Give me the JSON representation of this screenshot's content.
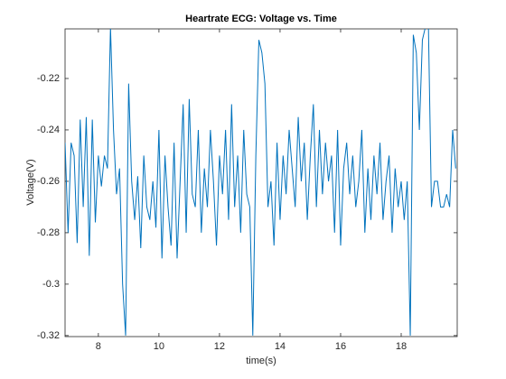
{
  "chart_data": {
    "type": "line",
    "title": "Heartrate ECG: Voltage vs. Time",
    "xlabel": "time(s)",
    "ylabel": "Voltage(V)",
    "xlim": [
      6.9,
      19.85
    ],
    "ylim": [
      -0.3204,
      -0.2007
    ],
    "xticks": [
      8,
      10,
      12,
      14,
      16,
      18
    ],
    "yticks": [
      -0.32,
      -0.3,
      -0.28,
      -0.26,
      -0.24,
      -0.22
    ],
    "grid": false,
    "series": [
      {
        "name": "ECG",
        "color": "#0072bd",
        "x": [
          6.9,
          7.0,
          7.1,
          7.2,
          7.3,
          7.4,
          7.5,
          7.6,
          7.7,
          7.8,
          7.9,
          8.0,
          8.1,
          8.2,
          8.3,
          8.4,
          8.5,
          8.6,
          8.7,
          8.8,
          8.9,
          9.0,
          9.1,
          9.2,
          9.3,
          9.4,
          9.5,
          9.6,
          9.7,
          9.8,
          9.9,
          10.0,
          10.1,
          10.2,
          10.3,
          10.4,
          10.5,
          10.6,
          10.7,
          10.8,
          10.9,
          11.0,
          11.1,
          11.2,
          11.3,
          11.4,
          11.5,
          11.6,
          11.7,
          11.8,
          11.9,
          12.0,
          12.1,
          12.2,
          12.3,
          12.4,
          12.5,
          12.6,
          12.7,
          12.8,
          12.9,
          13.0,
          13.1,
          13.2,
          13.3,
          13.4,
          13.5,
          13.6,
          13.7,
          13.8,
          13.9,
          14.0,
          14.1,
          14.2,
          14.3,
          14.4,
          14.5,
          14.6,
          14.7,
          14.8,
          14.9,
          15.0,
          15.1,
          15.2,
          15.3,
          15.4,
          15.5,
          15.6,
          15.7,
          15.8,
          15.9,
          16.0,
          16.1,
          16.2,
          16.3,
          16.4,
          16.5,
          16.6,
          16.7,
          16.8,
          16.9,
          17.0,
          17.1,
          17.2,
          17.3,
          17.4,
          17.5,
          17.6,
          17.7,
          17.8,
          17.9,
          18.0,
          18.1,
          18.2,
          18.3,
          18.4,
          18.5,
          18.6,
          18.7,
          18.8,
          18.9,
          19.0,
          19.1,
          19.2,
          19.3,
          19.4,
          19.5,
          19.6,
          19.7,
          19.8
        ],
        "values": [
          -0.245,
          -0.28,
          -0.245,
          -0.25,
          -0.284,
          -0.236,
          -0.27,
          -0.235,
          -0.289,
          -0.236,
          -0.276,
          -0.25,
          -0.262,
          -0.25,
          -0.255,
          -0.2,
          -0.24,
          -0.265,
          -0.255,
          -0.3,
          -0.32,
          -0.222,
          -0.26,
          -0.275,
          -0.258,
          -0.286,
          -0.25,
          -0.27,
          -0.275,
          -0.26,
          -0.278,
          -0.24,
          -0.29,
          -0.25,
          -0.27,
          -0.285,
          -0.245,
          -0.29,
          -0.26,
          -0.23,
          -0.28,
          -0.228,
          -0.265,
          -0.27,
          -0.24,
          -0.28,
          -0.255,
          -0.27,
          -0.24,
          -0.26,
          -0.285,
          -0.25,
          -0.265,
          -0.24,
          -0.275,
          -0.23,
          -0.27,
          -0.25,
          -0.28,
          -0.24,
          -0.265,
          -0.27,
          -0.32,
          -0.25,
          -0.205,
          -0.21,
          -0.222,
          -0.27,
          -0.26,
          -0.285,
          -0.245,
          -0.275,
          -0.25,
          -0.265,
          -0.24,
          -0.255,
          -0.27,
          -0.235,
          -0.26,
          -0.245,
          -0.275,
          -0.25,
          -0.23,
          -0.27,
          -0.24,
          -0.265,
          -0.245,
          -0.26,
          -0.25,
          -0.28,
          -0.24,
          -0.285,
          -0.255,
          -0.245,
          -0.265,
          -0.25,
          -0.27,
          -0.26,
          -0.24,
          -0.28,
          -0.255,
          -0.275,
          -0.25,
          -0.265,
          -0.245,
          -0.275,
          -0.26,
          -0.25,
          -0.28,
          -0.255,
          -0.27,
          -0.26,
          -0.275,
          -0.26,
          -0.32,
          -0.203,
          -0.21,
          -0.24,
          -0.205,
          -0.2,
          -0.2,
          -0.27,
          -0.26,
          -0.26,
          -0.27,
          -0.27,
          -0.265,
          -0.27,
          -0.24,
          -0.255
        ]
      }
    ]
  }
}
